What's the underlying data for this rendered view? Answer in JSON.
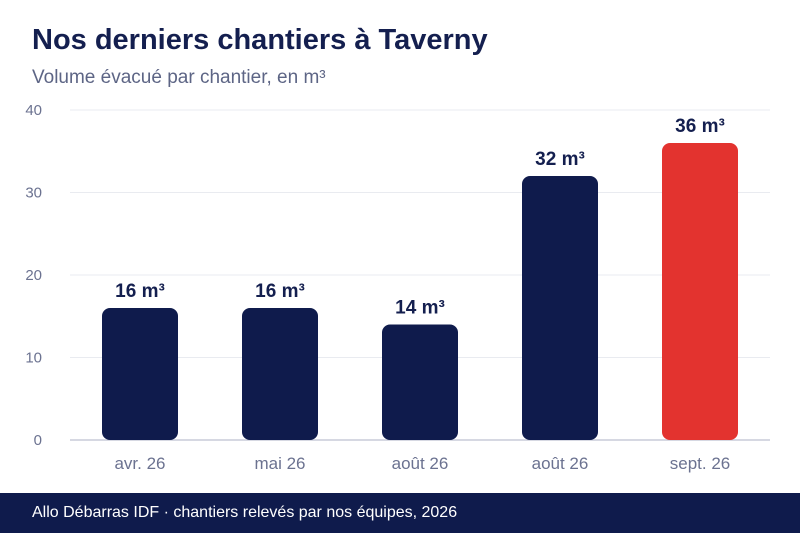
{
  "header": {
    "title": "Nos derniers chantiers à Taverny",
    "subtitle": "Volume évacué par chantier, en m³"
  },
  "footer": {
    "text": "Allo Débarras IDF · chantiers relevés par nos équipes, 2026"
  },
  "colors": {
    "bar": "#0f1b4c",
    "highlight": "#e3332f",
    "title": "#141f4f",
    "tick": "#6b7290",
    "grid": "#e9ebf0",
    "axis": "#c9ccd8"
  },
  "chart_data": {
    "type": "bar",
    "title": "Nos derniers chantiers à Taverny",
    "subtitle": "Volume évacué par chantier, en m³",
    "xlabel": "",
    "ylabel": "",
    "categories": [
      "avr. 26",
      "mai 26",
      "août 26",
      "août 26",
      "sept. 26"
    ],
    "values": [
      16,
      16,
      14,
      32,
      36
    ],
    "value_labels": [
      "16 m³",
      "16 m³",
      "14 m³",
      "32 m³",
      "36 m³"
    ],
    "highlight_index": 4,
    "ylim": [
      0,
      40
    ],
    "yticks": [
      0,
      10,
      20,
      30,
      40
    ],
    "grid": true,
    "legend": "none"
  }
}
